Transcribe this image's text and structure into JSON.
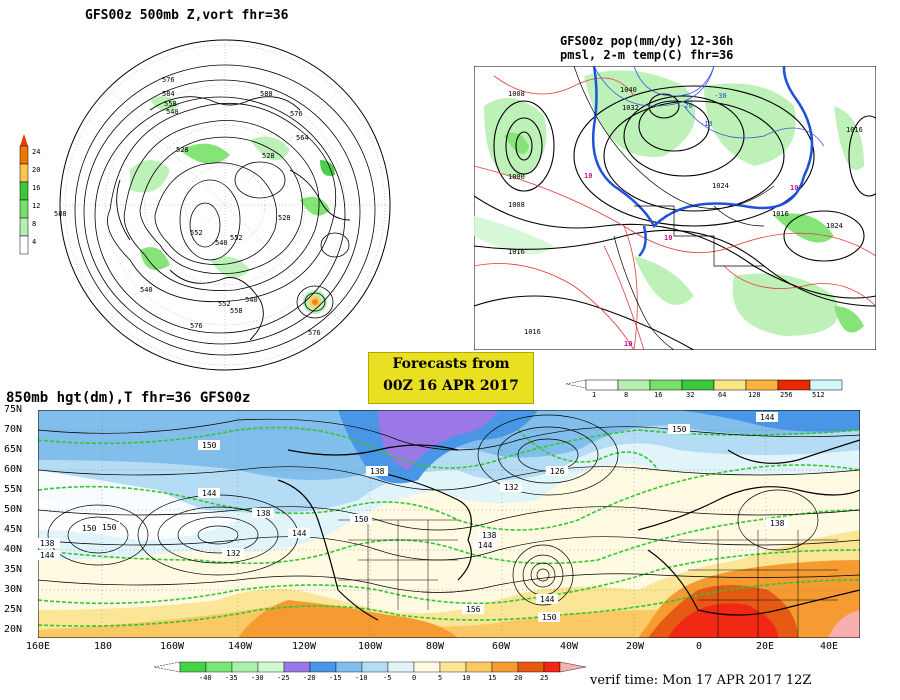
{
  "polar_panel": {
    "title": "GFS00z  500mb Z,vort    fhr=36",
    "scale_labels": [
      "24",
      "20",
      "16",
      "12",
      "8",
      "4"
    ],
    "contour_labels": [
      "576",
      "584",
      "558",
      "540",
      "528",
      "588",
      "576",
      "564",
      "528",
      "552",
      "540",
      "552",
      "528",
      "540",
      "552",
      "558",
      "540",
      "576",
      "576",
      "588"
    ]
  },
  "pmsl_panel": {
    "title_line1": "GFS00z pop(mm/dy) 12-36h",
    "title_line2": "pmsl, 2-m temp(C)  fhr=36",
    "isobar_labels": [
      "1008",
      "1000",
      "1008",
      "1016",
      "1032",
      "1024",
      "1016",
      "1024",
      "1016",
      "1040",
      "1016"
    ],
    "temp_labels": [
      "10",
      "10",
      "10",
      "-10",
      "-20",
      "-30",
      "10"
    ]
  },
  "forecast_box": {
    "line1": "Forecasts from",
    "line2": "00Z 16 APR 2017"
  },
  "precip_scale": {
    "labels": [
      "1",
      "8",
      "16",
      "32",
      "64",
      "128",
      "256",
      "512"
    ],
    "colors": [
      "#ffffff",
      "#b6f0b0",
      "#78e06a",
      "#3cc83c",
      "#fae682",
      "#fab43c",
      "#f07800",
      "#e82800",
      "#d0f8f8"
    ]
  },
  "main_panel": {
    "title": "850mb hgt(dm),T  fhr=36 GFS00z",
    "lat_labels": [
      "75N",
      "70N",
      "65N",
      "60N",
      "55N",
      "50N",
      "45N",
      "40N",
      "35N",
      "30N",
      "25N",
      "20N"
    ],
    "lon_labels": [
      "160E",
      "180",
      "160W",
      "140W",
      "120W",
      "100W",
      "80W",
      "60W",
      "40W",
      "20W",
      "0",
      "20E",
      "40E"
    ],
    "height_labels": [
      "150",
      "138",
      "144",
      "150",
      "138",
      "132",
      "144",
      "150",
      "138",
      "132",
      "150",
      "144",
      "138",
      "126",
      "144",
      "156",
      "150",
      "144",
      "150",
      "144",
      "138"
    ]
  },
  "temp_scale": {
    "labels": [
      "-40",
      "-35",
      "-30",
      "-25",
      "-20",
      "-15",
      "-10",
      "-5",
      "0",
      "5",
      "10",
      "15",
      "20",
      "25"
    ],
    "colors": [
      "#46d246",
      "#78e678",
      "#aaf0aa",
      "#d2f8d2",
      "#9a78e6",
      "#4a96e6",
      "#82beec",
      "#b4dcf4",
      "#e1f4fa",
      "#fffae1",
      "#fae696",
      "#fac864",
      "#f59b32",
      "#e65a14",
      "#f02814",
      "#faafaf"
    ]
  },
  "verif_time": "verif time: Mon 17 APR 2017 12Z"
}
